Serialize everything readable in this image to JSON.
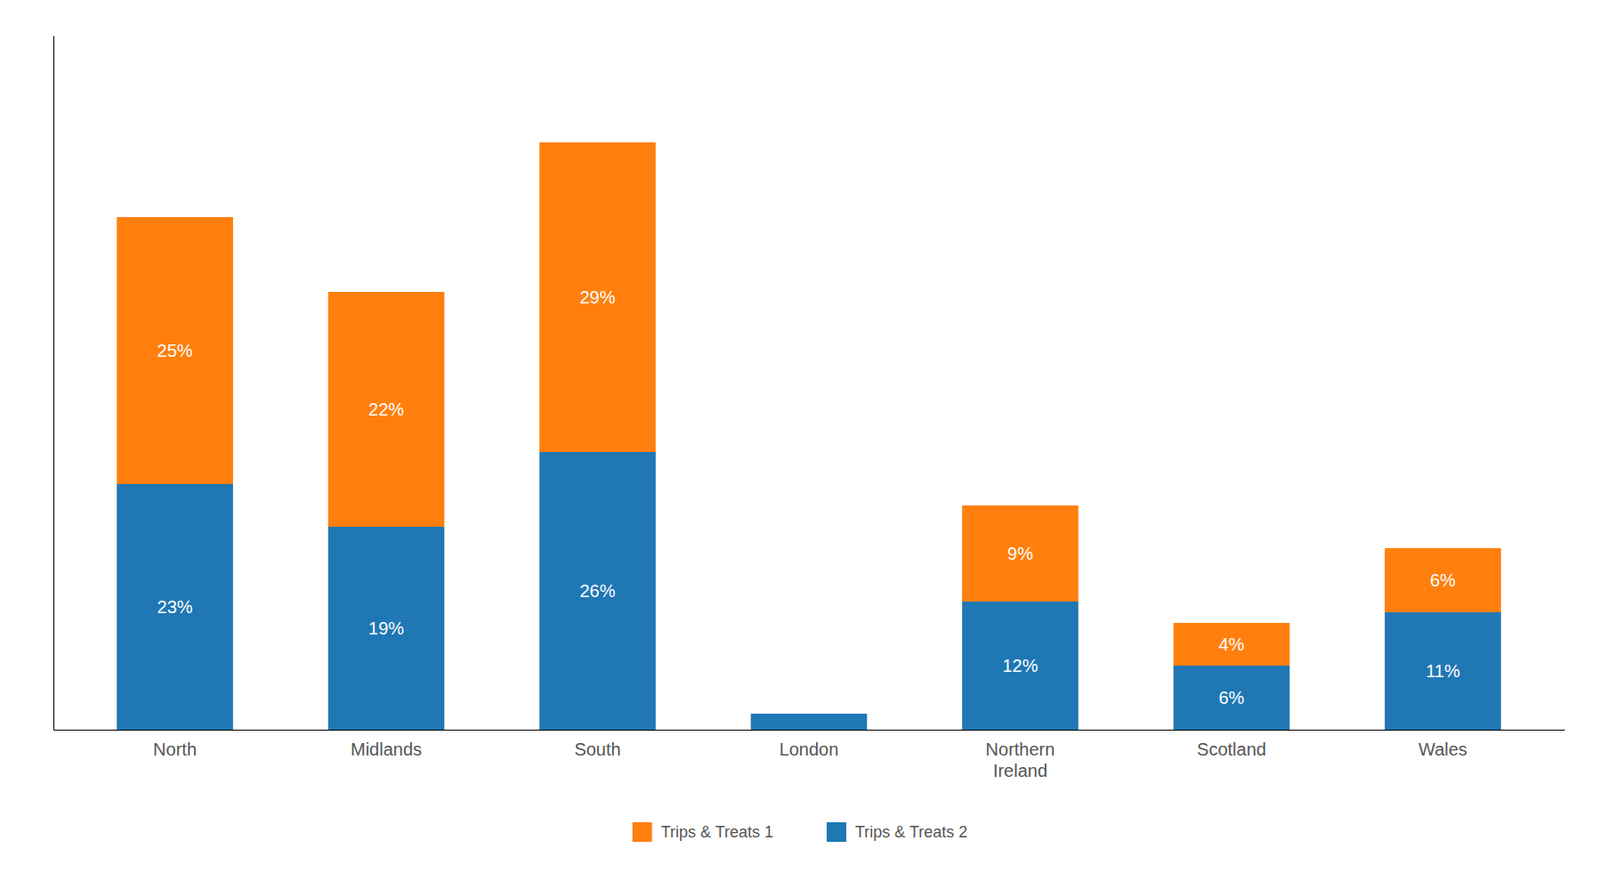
{
  "chart_data": {
    "type": "bar",
    "stacked": true,
    "categories": [
      "North",
      "Midlands",
      "South",
      "London",
      "Northern\nIreland",
      "Scotland",
      "Wales"
    ],
    "series": [
      {
        "name": "Trips & Treats 2",
        "values": [
          23,
          19,
          26,
          1.5,
          12,
          6,
          11
        ],
        "value_labels": [
          "23%",
          "19%",
          "26%",
          null,
          "12%",
          "6%",
          "11%"
        ]
      },
      {
        "name": "Trips & Treats 1",
        "values": [
          25,
          22,
          29,
          0,
          9,
          4,
          6
        ],
        "value_labels": [
          "25%",
          "22%",
          "29%",
          null,
          "9%",
          "4%",
          "6%"
        ]
      }
    ],
    "ylim": [
      0,
      65
    ],
    "grid": false,
    "legend": "bottom",
    "data_labels": true,
    "tick_labels": "x"
  }
}
